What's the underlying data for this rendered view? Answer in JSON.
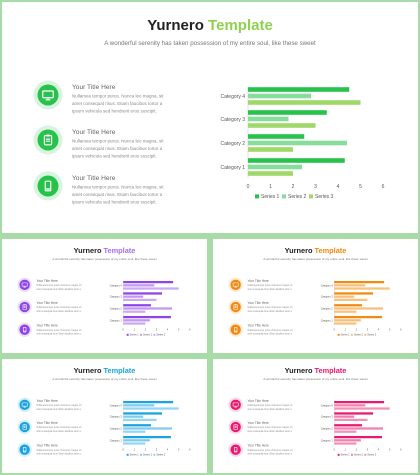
{
  "slides": [
    {
      "id": "main",
      "title_part1": "Yurnero",
      "title_part2": "Template",
      "subtitle": "A wonderful serenity has taken possession of my entire soul, like these sweet",
      "accent": "#27c24c",
      "accent2": "#8fd14f",
      "title_part2_color": "#8fd14f",
      "icons": [
        "monitor-icon",
        "clipboard-icon",
        "phone-icon"
      ],
      "items": [
        {
          "heading": "Your Title Here",
          "body": [
            "Nullamea tempor purus. Nunca leo magna, sit",
            "amet consequat risus. Etiam faucibus tortor a",
            "ipsum vehicula sed hendrerit eros suscipit."
          ]
        },
        {
          "heading": "Your Title Here",
          "body": [
            "Nullamea tempor purus. Nunca leo magna, sit",
            "amet consequat risus. Etiam faucibus tortor a",
            "ipsum vehicula sed hendrerit eros suscipit."
          ]
        },
        {
          "heading": "Your Title Here",
          "body": [
            "Nullamea tempor purus. Nunca leo magna, sit",
            "amet consequat risus. Etiam faucibus tortor a",
            "ipsum vehicula sed hendrerit eros suscipit."
          ]
        }
      ]
    },
    {
      "id": "purple",
      "title_part1": "Yurnero",
      "title_part2": "Template",
      "subtitle": "A wonderful serenity has taken possession of my entire soul, like these sweet",
      "accent": "#8e44e8",
      "accent2": "#c39bf0",
      "title_part2_color": "#a66ef0",
      "icons": [
        "monitor-icon",
        "clipboard-icon",
        "phone-icon"
      ],
      "items": [
        {
          "heading": "Your Title Here",
          "body": [
            "Nullamea tempor purus. Nunca leo magna, sit",
            "amet consequat risus. Etiam faucibus tortor a"
          ]
        },
        {
          "heading": "Your Title Here",
          "body": [
            "Nullamea tempor purus. Nunca leo magna, sit",
            "amet consequat risus. Etiam faucibus tortor a"
          ]
        },
        {
          "heading": "Your Title Here",
          "body": [
            "Nullamea tempor purus. Nunca leo magna, sit",
            "amet consequat risus. Etiam faucibus tortor a"
          ]
        }
      ]
    },
    {
      "id": "orange",
      "title_part1": "Yurnero",
      "title_part2": "Template",
      "subtitle": "A wonderful serenity has taken possession of my entire soul, like these sweet",
      "accent": "#f08a12",
      "accent2": "#f7b861",
      "title_part2_color": "#f08a12",
      "icons": [
        "monitor-icon",
        "clipboard-icon",
        "phone-icon"
      ],
      "items": [
        {
          "heading": "Your Title Here",
          "body": [
            "Nullamea tempor purus. Nunca leo magna, sit",
            "amet consequat risus. Etiam faucibus tortor a"
          ]
        },
        {
          "heading": "Your Title Here",
          "body": [
            "Nullamea tempor purus. Nunca leo magna, sit",
            "amet consequat risus. Etiam faucibus tortor a"
          ]
        },
        {
          "heading": "Your Title Here",
          "body": [
            "Nullamea tempor purus. Nunca leo magna, sit",
            "amet consequat risus. Etiam faucibus tortor a"
          ]
        }
      ]
    },
    {
      "id": "blue",
      "title_part1": "Yurnero",
      "title_part2": "Template",
      "subtitle": "A wonderful serenity has taken possession of my entire soul, like these sweet",
      "accent": "#1aa3e0",
      "accent2": "#7fd0f2",
      "title_part2_color": "#1aa3e0",
      "icons": [
        "monitor-icon",
        "clipboard-icon",
        "phone-icon"
      ],
      "items": [
        {
          "heading": "Your Title Here",
          "body": [
            "Nullamea tempor purus. Nunca leo magna, sit",
            "amet consequat risus. Etiam faucibus tortor a"
          ]
        },
        {
          "heading": "Your Title Here",
          "body": [
            "Nullamea tempor purus. Nunca leo magna, sit",
            "amet consequat risus. Etiam faucibus tortor a"
          ]
        },
        {
          "heading": "Your Title Here",
          "body": [
            "Nullamea tempor purus. Nunca leo magna, sit",
            "amet consequat risus. Etiam faucibus tortor a"
          ]
        }
      ]
    },
    {
      "id": "pink",
      "title_part1": "Yurnero",
      "title_part2": "Template",
      "subtitle": "A wonderful serenity has taken possession of my entire soul, like these sweet",
      "accent": "#e8196e",
      "accent2": "#f27bab",
      "title_part2_color": "#e8196e",
      "icons": [
        "monitor-icon",
        "clipboard-icon",
        "phone-icon"
      ],
      "items": [
        {
          "heading": "Your Title Here",
          "body": [
            "Nullamea tempor purus. Nunca leo magna, sit",
            "amet consequat risus. Etiam faucibus tortor a"
          ]
        },
        {
          "heading": "Your Title Here",
          "body": [
            "Nullamea tempor purus. Nunca leo magna, sit",
            "amet consequat risus. Etiam faucibus tortor a"
          ]
        },
        {
          "heading": "Your Title Here",
          "body": [
            "Nullamea tempor purus. Nunca leo magna, sit",
            "amet consequat risus. Etiam faucibus tortor a"
          ]
        }
      ]
    }
  ],
  "chart_data": {
    "type": "bar",
    "orientation": "horizontal",
    "categories": [
      "Category 1",
      "Category 2",
      "Category 3",
      "Category 4"
    ],
    "series": [
      {
        "name": "Series 1",
        "values": [
          4.3,
          2.5,
          3.5,
          4.5
        ]
      },
      {
        "name": "Series 2",
        "values": [
          2.4,
          4.4,
          1.8,
          2.8
        ]
      },
      {
        "name": "Series 3",
        "values": [
          2.0,
          2.0,
          3.0,
          5.0
        ]
      }
    ],
    "xlim": [
      0,
      6
    ],
    "xticks": [
      0,
      1,
      2,
      3,
      4,
      5,
      6
    ],
    "legend_position": "bottom"
  }
}
